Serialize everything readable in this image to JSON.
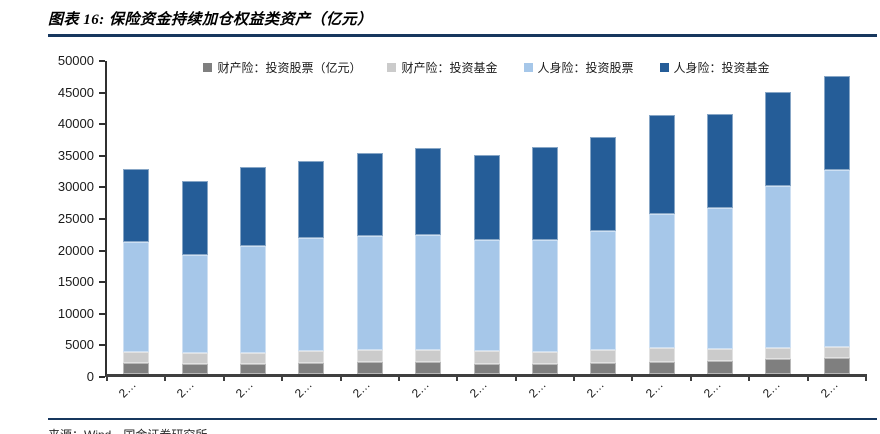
{
  "header": {
    "title": "图表 16: 保险资金持续加仓权益类资产（亿元）"
  },
  "footer": {
    "source": "来源：Wind，国金证券研究所"
  },
  "colors": {
    "divider": "#17375E",
    "axis_line": "#303030",
    "x_axis_line": "#3F3F3F",
    "pc_stock": "#7F7F7F",
    "pc_fund": "#CBCBCB",
    "life_stock": "#A6C7E9",
    "life_fund": "#255D98"
  },
  "chart_data": {
    "type": "bar",
    "stacked": true,
    "title": "图表 16: 保险资金持续加仓权益类资产（亿元）",
    "unit": "亿元",
    "grid": false,
    "legend_position": "top",
    "ylim": [
      0,
      50000
    ],
    "yticks": [
      0,
      5000,
      10000,
      15000,
      20000,
      25000,
      30000,
      35000,
      40000,
      45000,
      50000
    ],
    "categories": [
      "2…",
      "2…",
      "2…",
      "2…",
      "2…",
      "2…",
      "2…",
      "2…",
      "2…",
      "2…",
      "2…",
      "2…",
      "2…"
    ],
    "series": [
      {
        "key": "pc-stock",
        "name": "财产险：投资股票（亿元）",
        "color": "#7F7F7F",
        "values": [
          1750,
          1650,
          1550,
          1750,
          1900,
          1900,
          1650,
          1650,
          1800,
          1900,
          2050,
          2350,
          2550
        ]
      },
      {
        "key": "pc-fund",
        "name": "财产险：投资基金",
        "color": "#CBCBCB",
        "values": [
          1700,
          1750,
          1850,
          1850,
          1850,
          1850,
          1950,
          1850,
          1950,
          2200,
          1950,
          1750,
          1700
        ]
      },
      {
        "key": "life-stock",
        "name": "人身险：投资股票",
        "color": "#A6C7E9",
        "values": [
          17400,
          15400,
          16900,
          17900,
          18050,
          18250,
          17600,
          17650,
          18950,
          21300,
          22250,
          25700,
          28100
        ]
      },
      {
        "key": "life-fund",
        "name": "人身险：投资基金",
        "color": "#255D98",
        "values": [
          11650,
          11700,
          12400,
          12200,
          13200,
          13700,
          13500,
          14750,
          14800,
          15600,
          14850,
          14800,
          14750
        ]
      }
    ],
    "totals": [
      32500,
      30500,
      32700,
      33700,
      35000,
      35700,
      34700,
      35900,
      37500,
      41000,
      41100,
      44600,
      47100
    ]
  }
}
